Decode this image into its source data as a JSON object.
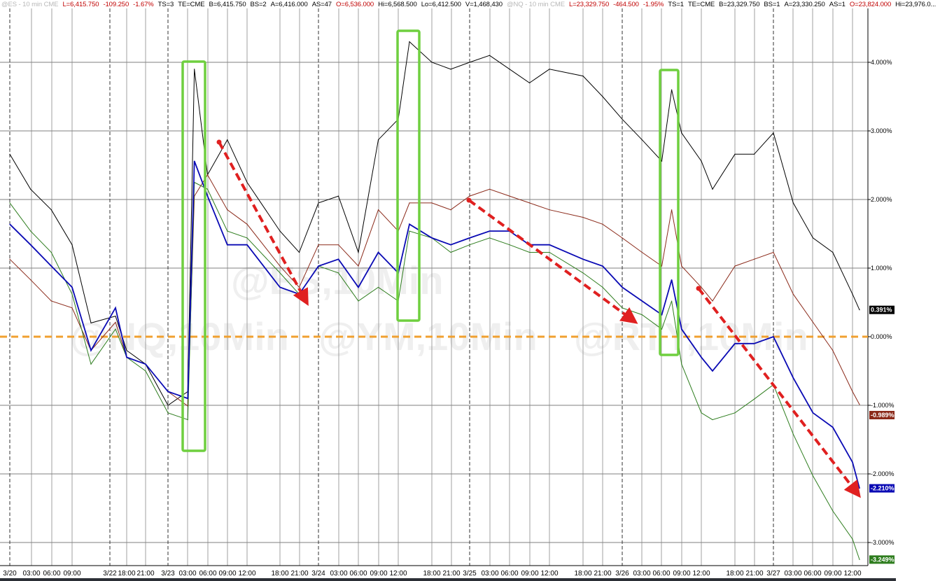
{
  "header": [
    {
      "text": "@ES - 10 min  CME",
      "color": "#b8b8b8"
    },
    {
      "text": "L=6,415.750",
      "color": "#c00000"
    },
    {
      "text": "-109.250",
      "color": "#c00000"
    },
    {
      "text": "-1.67%",
      "color": "#c00000"
    },
    {
      "text": "TS=3",
      "color": "#000"
    },
    {
      "text": "TE=CME",
      "color": "#000"
    },
    {
      "text": "B=6,415.750",
      "color": "#000"
    },
    {
      "text": "BS=2",
      "color": "#000"
    },
    {
      "text": "A=6,416.000",
      "color": "#000"
    },
    {
      "text": "AS=47",
      "color": "#000"
    },
    {
      "text": "O=6,536.000",
      "color": "#c00000"
    },
    {
      "text": "Hi=6,568.500",
      "color": "#000"
    },
    {
      "text": "Lo=6,412.500",
      "color": "#000"
    },
    {
      "text": "V=1,468,430",
      "color": "#000"
    },
    {
      "text": "@NQ - 10 min  CME",
      "color": "#b8b8b8"
    },
    {
      "text": "L=23,329.750",
      "color": "#c00000"
    },
    {
      "text": "-464.500",
      "color": "#c00000"
    },
    {
      "text": "-1.95%",
      "color": "#c00000"
    },
    {
      "text": "TS=1",
      "color": "#000"
    },
    {
      "text": "TE=CME",
      "color": "#000"
    },
    {
      "text": "B=23,329.750",
      "color": "#000"
    },
    {
      "text": "BS=1",
      "color": "#000"
    },
    {
      "text": "A=23,330.250",
      "color": "#000"
    },
    {
      "text": "AS=1",
      "color": "#000"
    },
    {
      "text": "O=23,824.000",
      "color": "#c00000"
    },
    {
      "text": "Hi=23,976.0...",
      "color": "#000"
    }
  ],
  "watermarks": [
    "@ES,10Min",
    "@NQ,10Min",
    "@YM,10Min",
    "@RTY,10Min"
  ],
  "chart_data": {
    "type": "line",
    "yaxis": {
      "position": "right",
      "unit": "%",
      "ticks": [
        "4.000%",
        "3.000%",
        "2.000%",
        "1.000%",
        "0.000%",
        "-1.000%",
        "-2.000%",
        "-3.000%"
      ],
      "ylim": [
        -3.35,
        4.6
      ]
    },
    "xaxis": {
      "ticks": [
        "3/20",
        "03:00",
        "06:00",
        "09:00",
        "3/22",
        "18:00",
        "21:00",
        "3/23",
        "03:00",
        "06:00",
        "09:00",
        "12:00",
        "18:00",
        "21:00",
        "3/24",
        "03:00",
        "06:00",
        "09:00",
        "12:00",
        "18:00",
        "21:00",
        "3/25",
        "03:00",
        "06:00",
        "09:00",
        "12:00",
        "18:00",
        "21:00",
        "3/26",
        "03:00",
        "06:00",
        "09:00",
        "12:00",
        "18:00",
        "21:00",
        "3/27",
        "03:00",
        "06:00",
        "09:00",
        "12:00"
      ]
    },
    "grid": true,
    "zero_line_color": "#f0a030",
    "x": [
      "3/20 00:00",
      "3/20 03:00",
      "3/20 06:00",
      "3/20 09:00",
      "3/20 12:00",
      "3/22 16:00",
      "3/22 18:00",
      "3/22 21:00",
      "3/23 00:00",
      "3/23 03:00",
      "3/23 04:00",
      "3/23 06:00",
      "3/23 09:00",
      "3/23 12:00",
      "3/23 18:00",
      "3/23 21:00",
      "3/24 00:00",
      "3/24 03:00",
      "3/24 06:00",
      "3/24 09:00",
      "3/24 12:00",
      "3/24 14:00",
      "3/24 18:00",
      "3/24 21:00",
      "3/25 00:00",
      "3/25 03:00",
      "3/25 06:00",
      "3/25 09:00",
      "3/25 12:00",
      "3/25 18:00",
      "3/25 21:00",
      "3/26 00:00",
      "3/26 03:00",
      "3/26 06:00",
      "3/26 07:30",
      "3/26 09:00",
      "3/26 12:00",
      "3/26 14:00",
      "3/26 18:00",
      "3/26 21:00",
      "3/27 00:00",
      "3/27 03:00",
      "3/27 06:00",
      "3/27 09:00",
      "3/27 12:00",
      "3/27 13:00"
    ],
    "series": [
      {
        "color": "#000000",
        "last_label": "0.391%",
        "values": [
          2.66,
          2.15,
          1.85,
          1.34,
          0.2,
          0.3,
          -0.2,
          -0.4,
          -1.0,
          -0.8,
          3.9,
          2.36,
          2.87,
          2.25,
          1.54,
          1.23,
          1.95,
          2.05,
          1.23,
          2.87,
          3.17,
          4.3,
          4.0,
          3.9,
          4.0,
          4.1,
          3.9,
          3.7,
          3.9,
          3.8,
          3.5,
          3.17,
          2.87,
          2.56,
          3.6,
          2.97,
          2.56,
          2.15,
          2.66,
          2.66,
          2.97,
          1.95,
          1.44,
          1.23,
          0.62,
          0.391
        ]
      },
      {
        "color": "#8b2a1a",
        "last_label": "-0.989%",
        "values": [
          1.13,
          0.83,
          0.52,
          0.42,
          -0.2,
          0.21,
          -0.3,
          -0.4,
          -0.8,
          -1.01,
          2.05,
          2.36,
          1.85,
          1.64,
          1.03,
          0.72,
          1.34,
          1.34,
          1.03,
          1.85,
          1.54,
          1.95,
          1.95,
          1.85,
          2.05,
          2.15,
          2.05,
          1.95,
          1.85,
          1.74,
          1.64,
          1.44,
          1.23,
          1.03,
          1.85,
          1.03,
          0.72,
          0.52,
          1.03,
          1.13,
          1.23,
          0.62,
          0.21,
          -0.2,
          -0.8,
          -0.989
        ]
      },
      {
        "color": "#0a0ab4",
        "last_label": "-2.210%",
        "values": [
          1.64,
          1.34,
          1.03,
          0.72,
          -0.2,
          0.42,
          -0.3,
          -0.4,
          -0.8,
          -0.9,
          2.56,
          2.05,
          1.34,
          1.34,
          0.72,
          0.62,
          1.03,
          1.13,
          0.72,
          1.23,
          0.93,
          1.64,
          1.44,
          1.34,
          1.44,
          1.54,
          1.54,
          1.34,
          1.34,
          1.13,
          1.03,
          0.72,
          0.52,
          0.32,
          0.83,
          0.11,
          -0.3,
          -0.5,
          -0.1,
          -0.1,
          0.0,
          -0.6,
          -1.11,
          -1.32,
          -1.83,
          -2.21
        ]
      },
      {
        "color": "#2e7d1e",
        "last_label": "-3.249%",
        "values": [
          1.95,
          1.54,
          1.23,
          0.62,
          -0.4,
          0.11,
          -0.3,
          -0.5,
          -1.11,
          -1.21,
          2.25,
          2.15,
          1.54,
          1.44,
          0.93,
          0.62,
          1.03,
          0.93,
          0.52,
          0.72,
          0.52,
          1.54,
          1.44,
          1.23,
          1.34,
          1.44,
          1.34,
          1.23,
          1.23,
          0.93,
          0.72,
          0.42,
          0.32,
          0.11,
          0.52,
          -0.4,
          -1.11,
          -1.21,
          -1.11,
          -0.91,
          -0.7,
          -1.42,
          -2.03,
          -2.54,
          -2.95,
          -3.249
        ]
      }
    ]
  }
}
